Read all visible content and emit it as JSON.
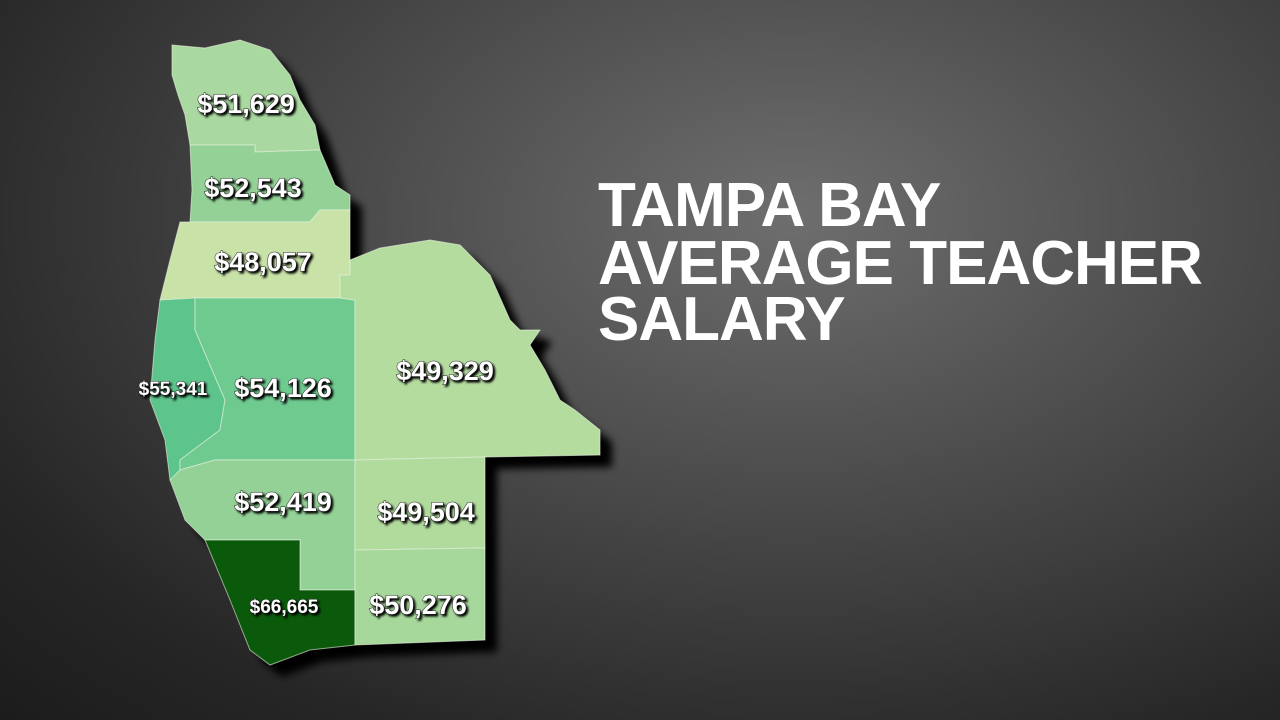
{
  "title": {
    "lines": [
      "TAMPA BAY",
      "AVERAGE TEACHER",
      "SALARY"
    ]
  },
  "regions": [
    {
      "label": "$51,629",
      "color": "#a9d8a0"
    },
    {
      "label": "$52,543",
      "color": "#93d196"
    },
    {
      "label": "$48,057",
      "color": "#c8e2a7"
    },
    {
      "label": "$55,341",
      "color": "#5dc58c"
    },
    {
      "label": "$54,126",
      "color": "#6fca90"
    },
    {
      "label": "$49,329",
      "color": "#b5dc9f"
    },
    {
      "label": "$52,419",
      "color": "#93d196"
    },
    {
      "label": "$49,504",
      "color": "#b1db9d"
    },
    {
      "label": "$66,665",
      "color": "#0b5a0b"
    },
    {
      "label": "$50,276",
      "color": "#a6d79b"
    }
  ]
}
